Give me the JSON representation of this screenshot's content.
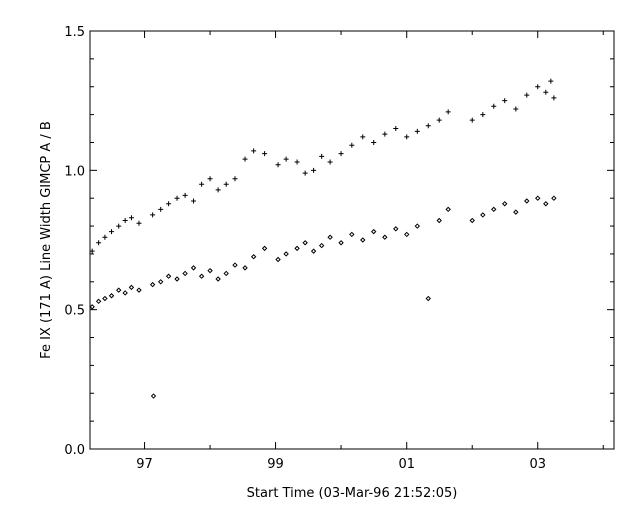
{
  "chart_data": {
    "type": "scatter",
    "xlabel": "Start Time (03-Mar-96 21:52:05)",
    "ylabel": "Fe IX (171 A) Line Width GIMCP A / B",
    "xlim": [
      "1996-03-03",
      "2004-03-01"
    ],
    "ylim": [
      0.0,
      1.5
    ],
    "x_ticks": [
      {
        "date": "1997-01-01",
        "label": "97"
      },
      {
        "date": "1998-01-01",
        "label": ""
      },
      {
        "date": "1999-01-01",
        "label": "99"
      },
      {
        "date": "2000-01-01",
        "label": ""
      },
      {
        "date": "2001-01-01",
        "label": "01"
      },
      {
        "date": "2002-01-01",
        "label": ""
      },
      {
        "date": "2003-01-01",
        "label": "03"
      },
      {
        "date": "2004-01-01",
        "label": ""
      }
    ],
    "y_ticks": [
      {
        "value": 0.0,
        "label": "0.0"
      },
      {
        "value": 0.5,
        "label": "0.5"
      },
      {
        "value": 1.0,
        "label": "1.0"
      },
      {
        "value": 1.5,
        "label": "1.5"
      }
    ],
    "grid": false,
    "series": [
      {
        "marker": "plus",
        "points": [
          [
            "1996-03-15",
            0.71
          ],
          [
            "1996-04-20",
            0.74
          ],
          [
            "1996-05-25",
            0.76
          ],
          [
            "1996-07-01",
            0.78
          ],
          [
            "1996-08-10",
            0.8
          ],
          [
            "1996-09-15",
            0.82
          ],
          [
            "1996-10-20",
            0.83
          ],
          [
            "1996-12-01",
            0.81
          ],
          [
            "1997-02-15",
            0.84
          ],
          [
            "1997-04-01",
            0.86
          ],
          [
            "1997-05-15",
            0.88
          ],
          [
            "1997-07-01",
            0.9
          ],
          [
            "1997-08-15",
            0.91
          ],
          [
            "1997-10-01",
            0.89
          ],
          [
            "1997-11-15",
            0.95
          ],
          [
            "1998-01-01",
            0.97
          ],
          [
            "1998-02-15",
            0.93
          ],
          [
            "1998-04-01",
            0.95
          ],
          [
            "1998-05-20",
            0.97
          ],
          [
            "1998-07-15",
            1.04
          ],
          [
            "1998-09-01",
            1.07
          ],
          [
            "1998-11-01",
            1.06
          ],
          [
            "1999-01-15",
            1.02
          ],
          [
            "1999-03-01",
            1.04
          ],
          [
            "1999-05-01",
            1.03
          ],
          [
            "1999-06-15",
            0.99
          ],
          [
            "1999-08-01",
            1.0
          ],
          [
            "1999-09-15",
            1.05
          ],
          [
            "1999-11-01",
            1.03
          ],
          [
            "2000-01-01",
            1.06
          ],
          [
            "2000-03-01",
            1.09
          ],
          [
            "2000-05-01",
            1.12
          ],
          [
            "2000-07-01",
            1.1
          ],
          [
            "2000-09-01",
            1.13
          ],
          [
            "2000-11-01",
            1.15
          ],
          [
            "2001-01-01",
            1.12
          ],
          [
            "2001-03-01",
            1.14
          ],
          [
            "2001-05-01",
            1.16
          ],
          [
            "2001-07-01",
            1.18
          ],
          [
            "2001-08-20",
            1.21
          ],
          [
            "2002-01-01",
            1.18
          ],
          [
            "2002-03-01",
            1.2
          ],
          [
            "2002-05-01",
            1.23
          ],
          [
            "2002-07-01",
            1.25
          ],
          [
            "2002-09-01",
            1.22
          ],
          [
            "2002-11-01",
            1.27
          ],
          [
            "2003-01-01",
            1.3
          ],
          [
            "2003-02-15",
            1.28
          ],
          [
            "2003-03-15",
            1.32
          ],
          [
            "2003-04-01",
            1.26
          ]
        ]
      },
      {
        "marker": "diamond",
        "points": [
          [
            "1996-03-15",
            0.51
          ],
          [
            "1996-04-20",
            0.53
          ],
          [
            "1996-05-25",
            0.54
          ],
          [
            "1996-07-01",
            0.55
          ],
          [
            "1996-08-10",
            0.57
          ],
          [
            "1996-09-15",
            0.56
          ],
          [
            "1996-10-20",
            0.58
          ],
          [
            "1996-12-01",
            0.57
          ],
          [
            "1997-02-15",
            0.59
          ],
          [
            "1997-02-20",
            0.19
          ],
          [
            "1997-04-01",
            0.6
          ],
          [
            "1997-05-15",
            0.62
          ],
          [
            "1997-07-01",
            0.61
          ],
          [
            "1997-08-15",
            0.63
          ],
          [
            "1997-10-01",
            0.65
          ],
          [
            "1997-11-15",
            0.62
          ],
          [
            "1998-01-01",
            0.64
          ],
          [
            "1998-02-15",
            0.61
          ],
          [
            "1998-04-01",
            0.63
          ],
          [
            "1998-05-20",
            0.66
          ],
          [
            "1998-07-15",
            0.65
          ],
          [
            "1998-09-01",
            0.69
          ],
          [
            "1998-11-01",
            0.72
          ],
          [
            "1999-01-15",
            0.68
          ],
          [
            "1999-03-01",
            0.7
          ],
          [
            "1999-05-01",
            0.72
          ],
          [
            "1999-06-15",
            0.74
          ],
          [
            "1999-08-01",
            0.71
          ],
          [
            "1999-09-15",
            0.73
          ],
          [
            "1999-11-01",
            0.76
          ],
          [
            "2000-01-01",
            0.74
          ],
          [
            "2000-03-01",
            0.77
          ],
          [
            "2000-05-01",
            0.75
          ],
          [
            "2000-07-01",
            0.78
          ],
          [
            "2000-09-01",
            0.76
          ],
          [
            "2000-11-01",
            0.79
          ],
          [
            "2001-01-01",
            0.77
          ],
          [
            "2001-03-01",
            0.8
          ],
          [
            "2001-05-01",
            0.54
          ],
          [
            "2001-07-01",
            0.82
          ],
          [
            "2001-08-20",
            0.86
          ],
          [
            "2002-01-01",
            0.82
          ],
          [
            "2002-03-01",
            0.84
          ],
          [
            "2002-05-01",
            0.86
          ],
          [
            "2002-07-01",
            0.88
          ],
          [
            "2002-09-01",
            0.85
          ],
          [
            "2002-11-01",
            0.89
          ],
          [
            "2003-01-01",
            0.9
          ],
          [
            "2003-02-15",
            0.88
          ],
          [
            "2003-04-01",
            0.9
          ]
        ]
      }
    ]
  }
}
